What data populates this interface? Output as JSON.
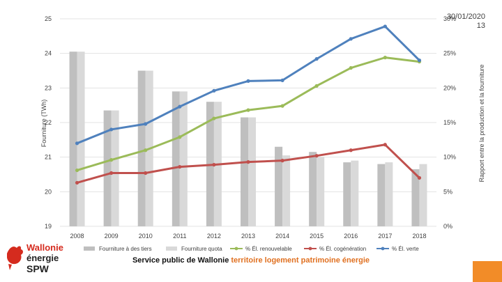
{
  "header": {
    "date": "30/01/2020",
    "page_number": "13"
  },
  "footer": {
    "org": "Service public de Wallonie",
    "themes": "territoire logement patrimoine énergie"
  },
  "logo": {
    "line1": "Wallonie",
    "line2": "énergie",
    "line3": "SPW"
  },
  "colors": {
    "bar_tiers": "#bfbfbf",
    "bar_quota": "#d9d9d9",
    "line_renouvelable": "#9bbb59",
    "line_cogeneration": "#c0504d",
    "line_verte": "#4f81bd",
    "accent_orange": "#f28c28",
    "logo_red": "#d52b1e"
  },
  "chart_data": {
    "type": "bar",
    "categories": [
      "2008",
      "2009",
      "2010",
      "2011",
      "2012",
      "2013",
      "2014",
      "2015",
      "2016",
      "2017",
      "2018"
    ],
    "ylabel": "Fourniture (TWh)",
    "y2label": "Rapport entre la production et la fourniture",
    "ylim": [
      19,
      25
    ],
    "y_ticks": [
      "19",
      "20",
      "21",
      "22",
      "23",
      "24",
      "25"
    ],
    "y2lim": [
      0,
      30
    ],
    "y2_ticks": [
      "0%",
      "5%",
      "10%",
      "15%",
      "20%",
      "25%",
      "30%"
    ],
    "series": [
      {
        "name": "Fourniture à des tiers",
        "type": "bar",
        "axis": "left",
        "values": [
          24.05,
          22.35,
          23.5,
          22.9,
          22.6,
          22.15,
          21.3,
          21.15,
          20.85,
          20.8,
          20.65
        ]
      },
      {
        "name": "Fourniture quota",
        "type": "bar",
        "axis": "left",
        "values": [
          24.05,
          22.35,
          23.5,
          22.9,
          22.6,
          22.15,
          21.05,
          21.0,
          20.9,
          20.85,
          20.8
        ]
      },
      {
        "name": "% Él. renouvelable",
        "type": "line",
        "axis": "right",
        "values": [
          8.1,
          9.6,
          11.0,
          12.9,
          15.6,
          16.8,
          17.4,
          20.3,
          22.9,
          24.4,
          23.8
        ]
      },
      {
        "name": "% Él. cogénération",
        "type": "line",
        "axis": "right",
        "values": [
          6.3,
          7.7,
          7.7,
          8.6,
          8.9,
          9.3,
          9.5,
          10.2,
          11.0,
          11.8,
          7.0
        ]
      },
      {
        "name": "% Él. verte",
        "type": "line",
        "axis": "right",
        "values": [
          12.0,
          14.0,
          14.8,
          17.3,
          19.6,
          21.0,
          21.1,
          24.2,
          27.1,
          28.9,
          24.0
        ]
      }
    ],
    "legend_position": "bottom"
  }
}
